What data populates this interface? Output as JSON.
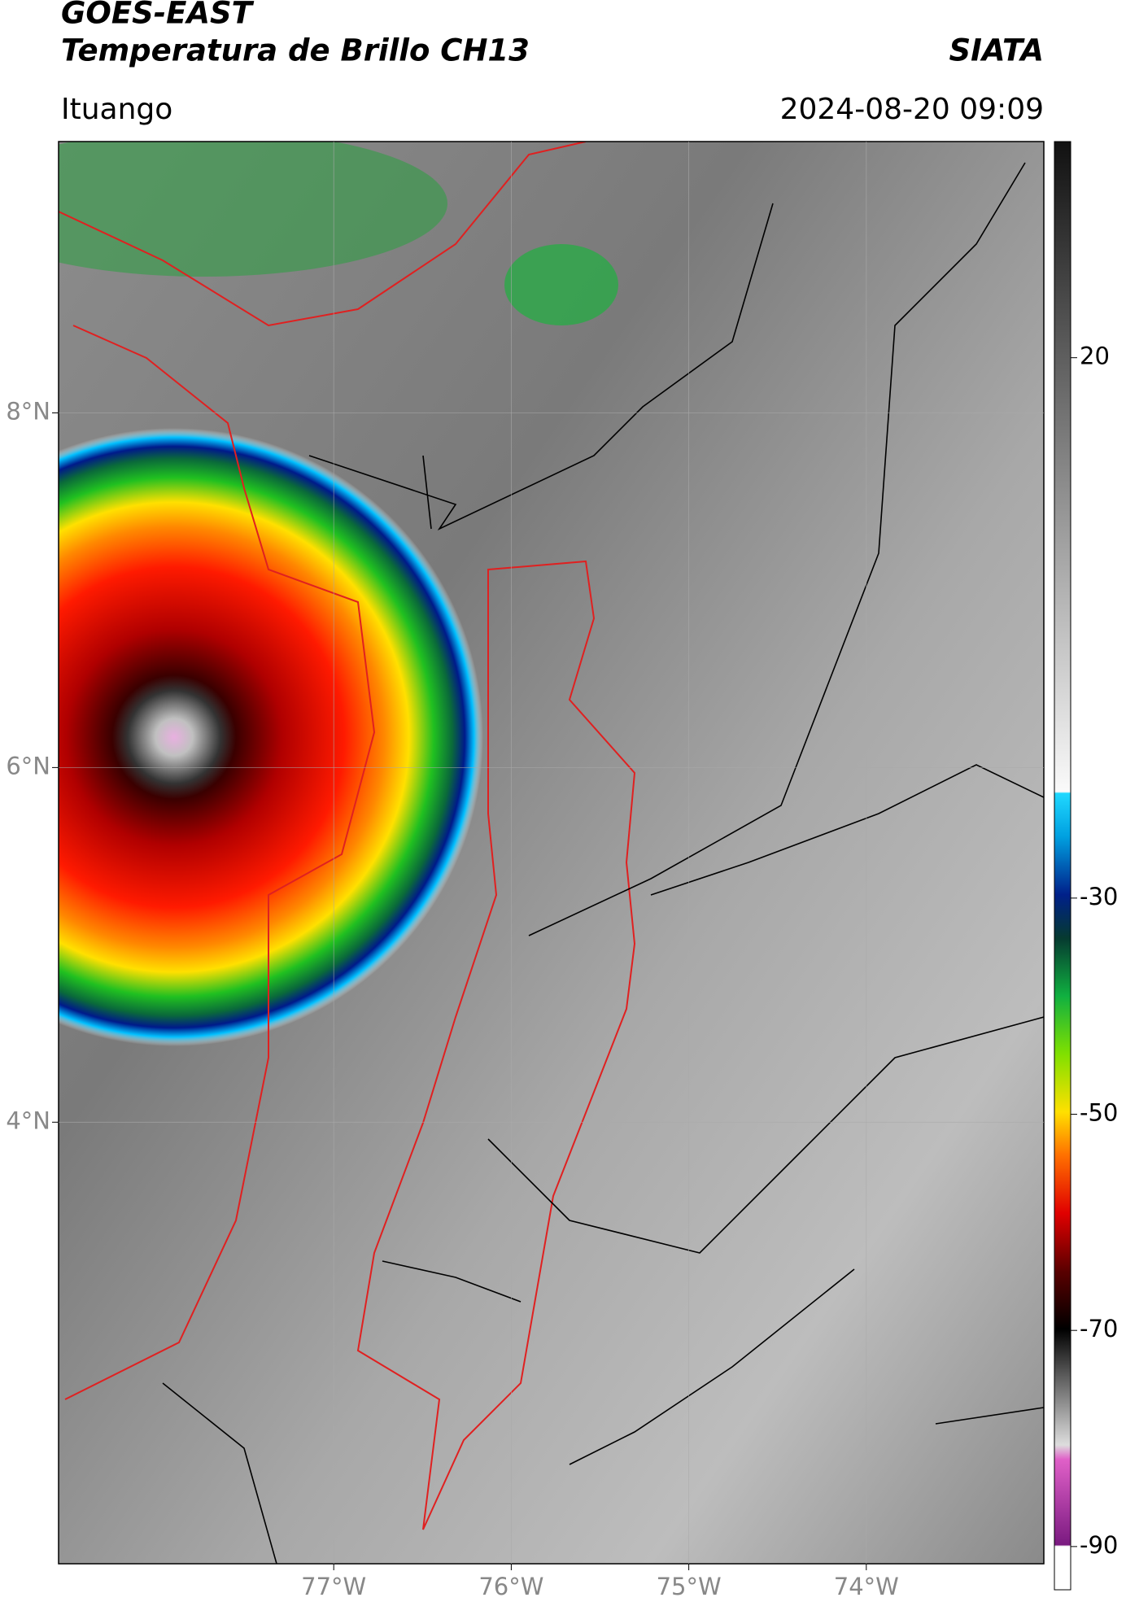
{
  "header": {
    "title": "GOES-EAST",
    "subtitle": "Temperatura de Brillo CH13",
    "source": "SIATA",
    "location": "Ituango",
    "datetime": "2024-08-20 09:09"
  },
  "map": {
    "xlim": [
      -78.55,
      -73.0
    ],
    "ylim": [
      1.51,
      9.53
    ],
    "xticks": [
      {
        "value": -77,
        "label": "77°W"
      },
      {
        "value": -76,
        "label": "76°W"
      },
      {
        "value": -75,
        "label": "75°W"
      },
      {
        "value": -74,
        "label": "74°W"
      }
    ],
    "yticks": [
      {
        "value": 8,
        "label": "8°N"
      },
      {
        "value": 6,
        "label": "6°N"
      },
      {
        "value": 4,
        "label": "4°N"
      }
    ]
  },
  "colorbar": {
    "ylim": [
      -94,
      40
    ],
    "yticks": [
      20,
      -30,
      -50,
      -70,
      -90
    ]
  }
}
